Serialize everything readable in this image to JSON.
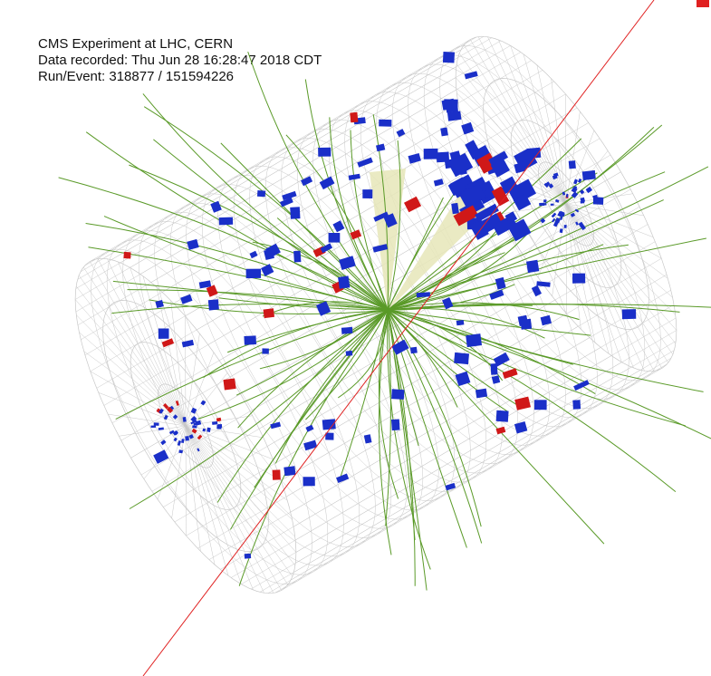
{
  "event_info": {
    "line1": "CMS Experiment at LHC, CERN",
    "line2": "Data recorded: Thu Jun 28 16:28:47 2018 CDT",
    "line3": "Run/Event: 318877 / 151594226"
  },
  "colors": {
    "background": "#ffffff",
    "detector_mesh": "#c8c8c8",
    "tracks": "#5a9a28",
    "hcal_blue": "#1a2fc8",
    "ecal_red": "#d01818",
    "muon_line": "#e02020",
    "jet_cone": "#e6e6b8"
  }
}
